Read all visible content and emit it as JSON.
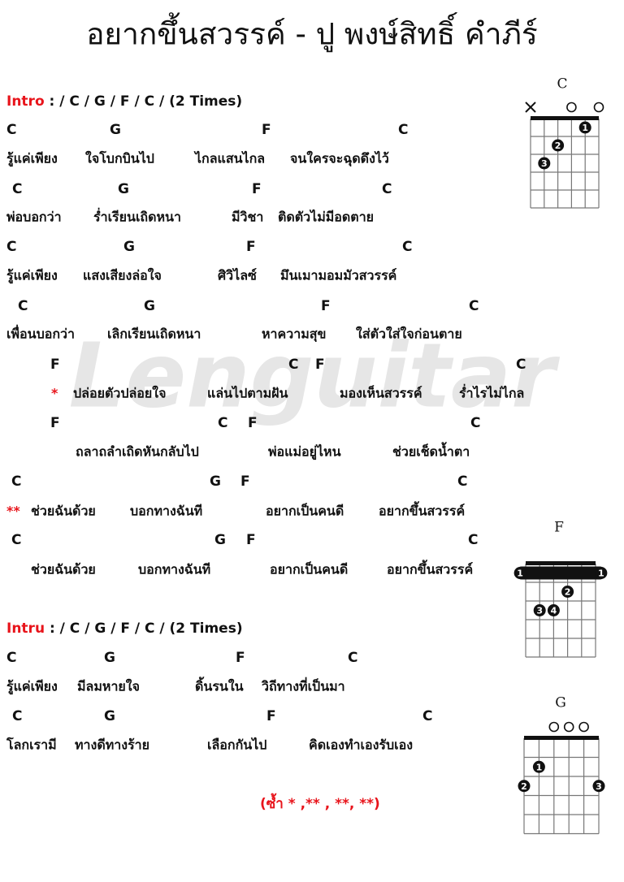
{
  "title": "อยากขึ้นสวรรค์ - ปู พงษ์สิทธิ์ คำภีร์",
  "watermark": "Lenguitar",
  "intro": {
    "label": "Intro",
    "text": " : / C / G / F / C / (2 Times)"
  },
  "lines": [
    {
      "chords": [
        "C",
        "G",
        "F",
        "C"
      ],
      "lyrics": [
        "รู้แค่เพียง",
        "ใจโบกบินไป",
        "ไกลแสนไกล",
        "จนใครจะฉุดดึงไว้"
      ]
    },
    {
      "chords": [
        "C",
        "G",
        "F",
        "C"
      ],
      "lyrics": [
        "พ่อบอกว่า",
        "ร่ำเรียนเถิดหนา",
        "มีวิชา",
        "ติดตัวไม่มีอดตาย"
      ]
    },
    {
      "chords": [
        "C",
        "G",
        "F",
        "C"
      ],
      "lyrics": [
        "รู้แค่เพียง",
        "แสงเสียงล่อใจ",
        "ศิวิไลซ์",
        "มึนเมามอมมัวสวรรค์"
      ]
    },
    {
      "chords": [
        "C",
        "G",
        "F",
        "C"
      ],
      "lyrics": [
        "เพื่อนบอกว่า",
        "เลิกเรียนเถิดหนา",
        "หาความสุข",
        "ใส่ตัวใส่ใจก่อนตาย"
      ]
    },
    {
      "chords": [
        "F",
        "C",
        "F",
        "C"
      ],
      "marker": "*",
      "lyrics": [
        "ปล่อยตัวปล่อยใจ",
        "แล่นไปตามฝัน",
        "มองเห็นสวรรค์",
        "ร่ำไรไม่ไกล"
      ]
    },
    {
      "chords": [
        "F",
        "C",
        "F",
        "C"
      ],
      "lyrics": [
        "ถลาถลำเถิดหันกลับไป",
        "พ่อแม่อยู่ไหน",
        "ช่วยเช็ดน้ำตา"
      ]
    },
    {
      "chords": [
        "C",
        "G",
        "F",
        "C"
      ],
      "marker": "**",
      "lyrics": [
        "ช่วยฉันด้วย",
        "บอกทางฉันที",
        "อยากเป็นคนดี",
        "อยากขึ้นสวรรค์"
      ]
    },
    {
      "chords": [
        "C",
        "G",
        "F",
        "C"
      ],
      "lyrics": [
        "ช่วยฉันด้วย",
        "บอกทางฉันที",
        "อยากเป็นคนดี",
        "อยากขึ้นสวรรค์"
      ]
    }
  ],
  "outro": {
    "label": "Intru",
    "text": " : / C / G / F / C / (2 Times)"
  },
  "lines2": [
    {
      "chords": [
        "C",
        "G",
        "F",
        "C"
      ],
      "lyrics": [
        "รู้แค่เพียง",
        "มีลมหายใจ",
        "ดิ้นรนใน",
        "วิถีทางที่เป็นมา"
      ]
    },
    {
      "chords": [
        "C",
        "G",
        "F",
        "C"
      ],
      "lyrics": [
        "โลกเรามี",
        "ทางดีทางร้าย",
        "เลือกกันไป",
        "คิดเองทำเองรับเอง"
      ]
    }
  ],
  "repeat_note": "(ซ้ำ * ,** , **, **)",
  "diagrams": [
    {
      "name": "C",
      "fingers": [
        "1",
        "2",
        "3"
      ]
    },
    {
      "name": "F",
      "fingers": [
        "1",
        "1",
        "2",
        "3",
        "4"
      ]
    },
    {
      "name": "G",
      "fingers": [
        "1",
        "2",
        "3"
      ]
    }
  ]
}
